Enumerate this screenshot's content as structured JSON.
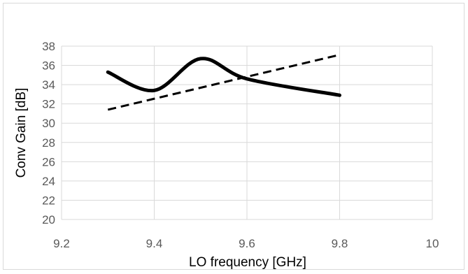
{
  "chart_data": {
    "type": "scatter",
    "title": "",
    "xlabel": "LO frequency [GHz]",
    "ylabel": "Conv Gain [dB]",
    "xlim": [
      9.2,
      10
    ],
    "ylim": [
      20,
      38
    ],
    "x_ticks": [
      9.2,
      9.4,
      9.6,
      9.8,
      10
    ],
    "y_ticks": [
      20,
      22,
      24,
      26,
      28,
      30,
      32,
      34,
      36,
      38
    ],
    "x_tick_labels": [
      "9.2",
      "9.4",
      "9.6",
      "9.8",
      "10"
    ],
    "y_tick_labels": [
      "20",
      "22",
      "24",
      "26",
      "28",
      "30",
      "32",
      "34",
      "36",
      "38"
    ],
    "grid": true,
    "legend": "none",
    "series": [
      {
        "style": "solid-smooth",
        "color": "#000000",
        "x": [
          9.3,
          9.4,
          9.5,
          9.6,
          9.8
        ],
        "y": [
          35.3,
          33.4,
          36.7,
          34.6,
          32.9
        ]
      },
      {
        "style": "dashed",
        "color": "#000000",
        "x": [
          9.3,
          9.8
        ],
        "y": [
          31.4,
          37.1
        ]
      }
    ],
    "colors": {
      "grid": "#d9d9d9",
      "tick_text": "#595959",
      "series": "#000000"
    }
  }
}
